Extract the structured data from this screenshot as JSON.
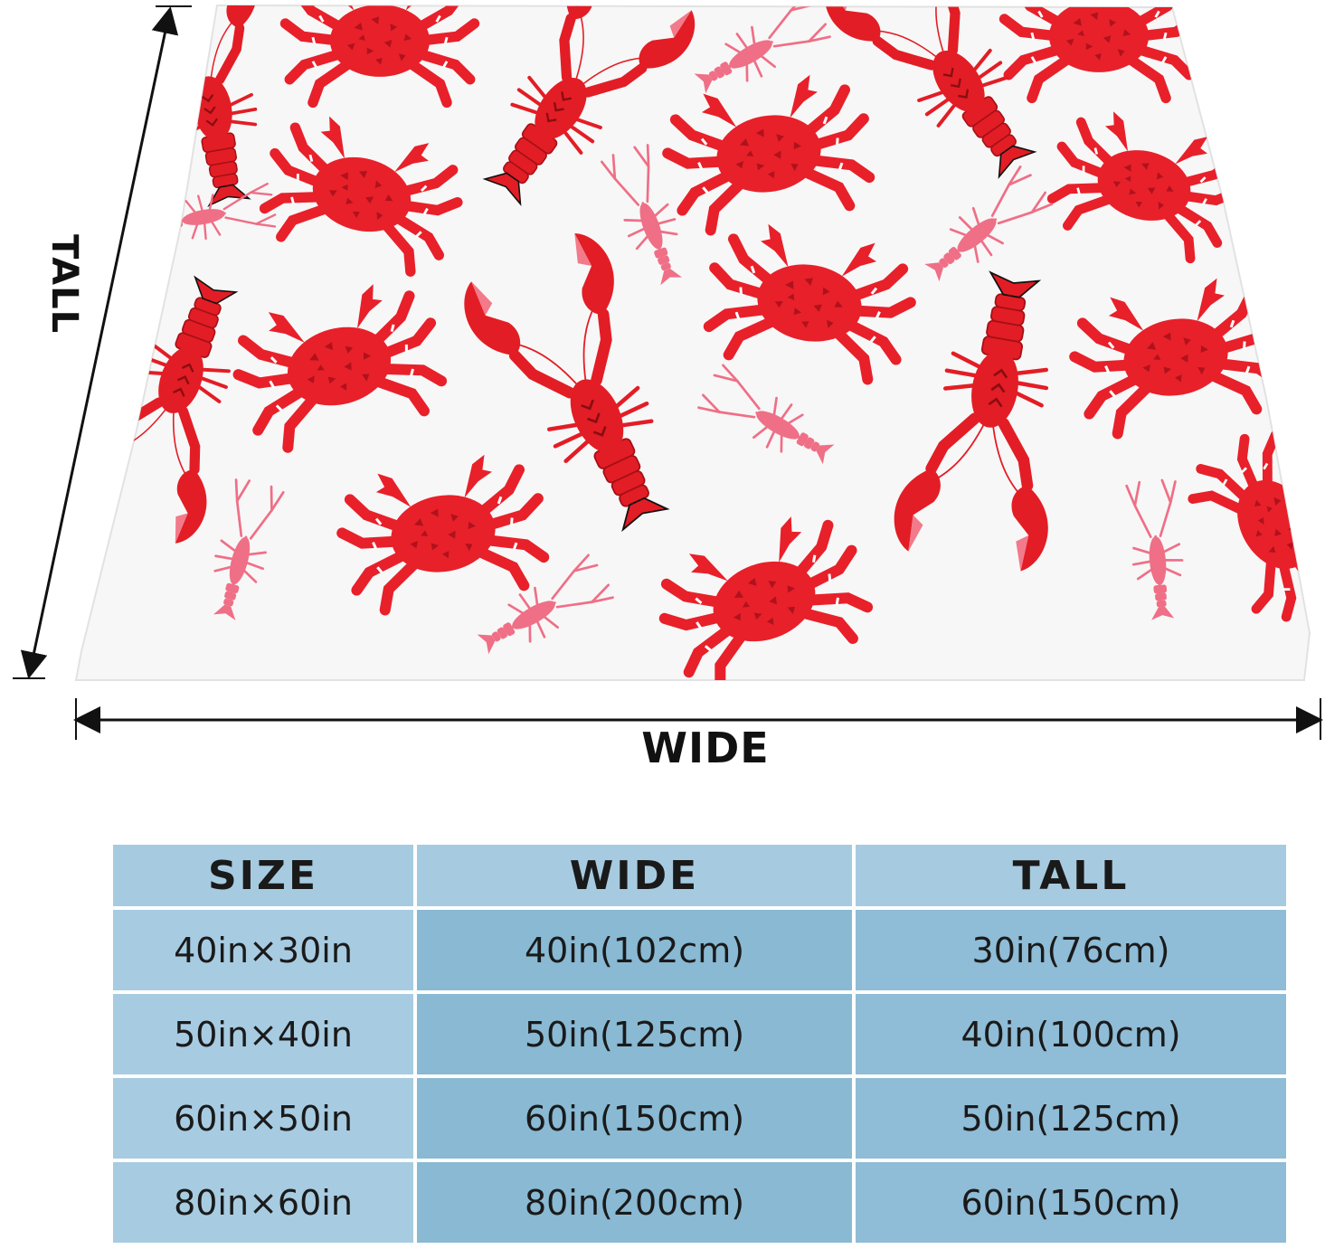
{
  "dimension_labels": {
    "tall": "TALL",
    "wide": "WIDE"
  },
  "product_image": {
    "pattern_icons": [
      "crab-icon",
      "lobster-icon",
      "crayfish-icon"
    ],
    "colors": {
      "background": "#f7f7f7",
      "crab": "#e8202a",
      "crab_shell_pattern": "#b0121c",
      "lobster": "#e31d25",
      "crayfish": "#ef6f86"
    }
  },
  "size_table": {
    "headers": [
      "SIZE",
      "WIDE",
      "TALL"
    ],
    "rows": [
      [
        "40in×30in",
        "40in(102cm)",
        "30in(76cm)"
      ],
      [
        "50in×40in",
        "50in(125cm)",
        "40in(100cm)"
      ],
      [
        "60in×50in",
        "60in(150cm)",
        "50in(125cm)"
      ],
      [
        "80in×60in",
        "80in(200cm)",
        "60in(150cm)"
      ]
    ],
    "colors": {
      "header": "#a6cbe0",
      "size_column": "#a7cbe1",
      "wide_column": "#89b9d3",
      "tall_column": "#8fbcd6"
    }
  }
}
